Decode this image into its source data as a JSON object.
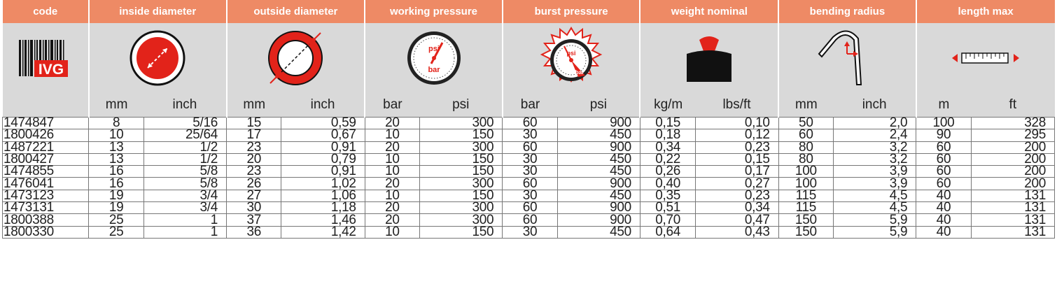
{
  "headers": [
    "code",
    "inside diameter",
    "outside diameter",
    "working pressure",
    "burst pressure",
    "weight nominal",
    "bending radius",
    "length max"
  ],
  "logo_text": "IVG",
  "gauge": {
    "psi": "psi",
    "bar": "bar"
  },
  "units": [
    "mm",
    "inch",
    "mm",
    "inch",
    "bar",
    "psi",
    "bar",
    "psi",
    "kg/m",
    "lbs/ft",
    "mm",
    "inch",
    "m",
    "ft"
  ],
  "rows": [
    [
      "1474847",
      "8",
      "5/16",
      "15",
      "0,59",
      "20",
      "300",
      "60",
      "900",
      "0,15",
      "0,10",
      "50",
      "2,0",
      "100",
      "328"
    ],
    [
      "1800426",
      "10",
      "25/64",
      "17",
      "0,67",
      "10",
      "150",
      "30",
      "450",
      "0,18",
      "0,12",
      "60",
      "2,4",
      "90",
      "295"
    ],
    [
      "1487221",
      "13",
      "1/2",
      "23",
      "0,91",
      "20",
      "300",
      "60",
      "900",
      "0,34",
      "0,23",
      "80",
      "3,2",
      "60",
      "200"
    ],
    [
      "1800427",
      "13",
      "1/2",
      "20",
      "0,79",
      "10",
      "150",
      "30",
      "450",
      "0,22",
      "0,15",
      "80",
      "3,2",
      "60",
      "200"
    ],
    [
      "1474855",
      "16",
      "5/8",
      "23",
      "0,91",
      "10",
      "150",
      "30",
      "450",
      "0,26",
      "0,17",
      "100",
      "3,9",
      "60",
      "200"
    ],
    [
      "1476041",
      "16",
      "5/8",
      "26",
      "1,02",
      "20",
      "300",
      "60",
      "900",
      "0,40",
      "0,27",
      "100",
      "3,9",
      "60",
      "200"
    ],
    [
      "1473123",
      "19",
      "3/4",
      "27",
      "1,06",
      "10",
      "150",
      "30",
      "450",
      "0,35",
      "0,23",
      "115",
      "4,5",
      "40",
      "131"
    ],
    [
      "1473131",
      "19",
      "3/4",
      "30",
      "1,18",
      "20",
      "300",
      "60",
      "900",
      "0,51",
      "0,34",
      "115",
      "4,5",
      "40",
      "131"
    ],
    [
      "1800388",
      "25",
      "1",
      "37",
      "1,46",
      "20",
      "300",
      "60",
      "900",
      "0,70",
      "0,47",
      "150",
      "5,9",
      "40",
      "131"
    ],
    [
      "1800330",
      "25",
      "1",
      "36",
      "1,42",
      "10",
      "150",
      "30",
      "450",
      "0,64",
      "0,43",
      "150",
      "5,9",
      "40",
      "131"
    ]
  ],
  "colors": {
    "header_bg": "#ee8a65",
    "icon_bg": "#d9d9d9",
    "accent_red": "#e2231a"
  }
}
